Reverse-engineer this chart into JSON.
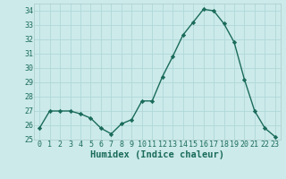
{
  "x": [
    0,
    1,
    2,
    3,
    4,
    5,
    6,
    7,
    8,
    9,
    10,
    11,
    12,
    13,
    14,
    15,
    16,
    17,
    18,
    19,
    20,
    21,
    22,
    23
  ],
  "y": [
    25.8,
    27.0,
    27.0,
    27.0,
    26.8,
    26.5,
    25.8,
    25.4,
    26.1,
    26.4,
    27.7,
    27.7,
    29.4,
    30.8,
    32.3,
    33.2,
    34.1,
    34.0,
    33.1,
    31.8,
    29.2,
    27.0,
    25.8,
    25.2
  ],
  "line_color": "#1a6b5a",
  "marker": "D",
  "marker_size": 2.2,
  "bg_color": "#cceaea",
  "grid_color": "#b0d8d8",
  "xlabel": "Humidex (Indice chaleur)",
  "ylim": [
    25,
    34.5
  ],
  "xlim": [
    -0.5,
    23.5
  ],
  "yticks": [
    25,
    26,
    27,
    28,
    29,
    30,
    31,
    32,
    33,
    34
  ],
  "xticks": [
    0,
    1,
    2,
    3,
    4,
    5,
    6,
    7,
    8,
    9,
    10,
    11,
    12,
    13,
    14,
    15,
    16,
    17,
    18,
    19,
    20,
    21,
    22,
    23
  ],
  "tick_fontsize": 6.0,
  "xlabel_fontsize": 7.5,
  "linewidth": 1.0
}
